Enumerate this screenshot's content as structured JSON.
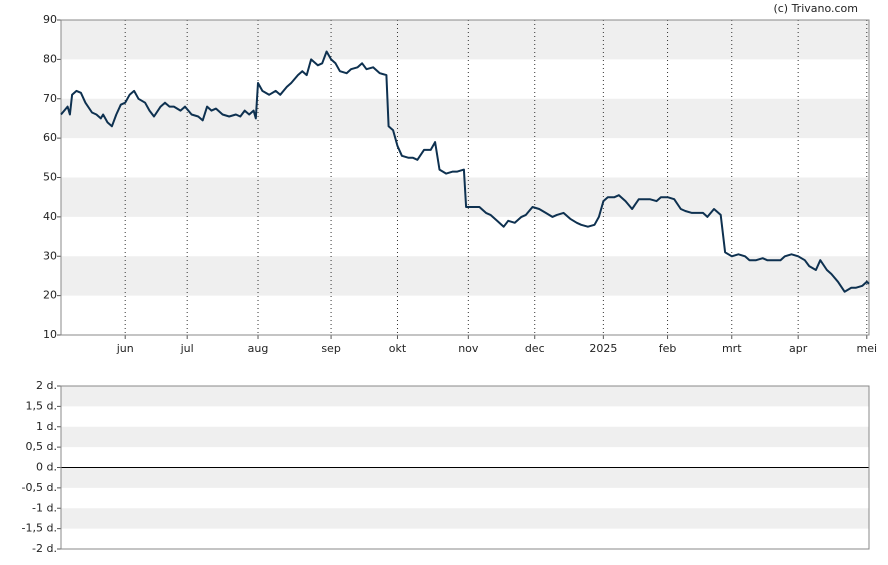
{
  "credit": "(c) Trivano.com",
  "chart_data": [
    {
      "type": "line",
      "x": [
        0,
        3,
        4,
        5,
        7,
        9,
        11,
        14,
        16,
        18,
        19,
        21,
        23,
        25,
        27,
        29,
        31,
        33,
        35,
        38,
        40,
        42,
        45,
        47,
        49,
        51,
        54,
        56,
        59,
        62,
        64,
        66,
        68,
        70,
        73,
        76,
        79,
        81,
        83,
        85,
        87,
        88,
        89,
        91,
        94,
        97,
        99,
        102,
        104,
        107,
        109,
        111,
        113,
        116,
        118,
        120,
        122,
        124,
        126,
        129,
        131,
        134,
        136,
        138,
        141,
        144,
        147,
        148,
        150,
        152,
        154,
        157,
        159,
        161,
        164,
        167,
        169,
        171,
        174,
        177,
        179,
        182,
        183,
        186,
        189,
        192,
        194,
        197,
        200,
        202,
        205,
        208,
        210,
        213,
        216,
        219,
        222,
        224,
        227,
        230,
        233,
        235,
        238,
        241,
        243,
        245,
        247,
        250,
        252,
        255,
        258,
        261,
        263,
        266,
        269,
        271,
        274,
        277,
        280,
        282,
        285,
        288,
        290,
        292,
        295,
        298,
        300,
        303,
        306,
        309,
        311,
        314,
        317,
        319,
        322,
        325,
        327,
        330,
        333,
        336,
        338,
        341,
        343,
        346,
        348,
        351,
        354,
        357,
        359,
        362,
        364,
        365
      ],
      "series": [
        {
          "color": "#0e3150",
          "values": [
            66,
            68,
            66,
            71,
            72,
            71.5,
            69,
            66.5,
            66,
            65,
            66,
            64,
            63,
            66,
            68.5,
            69,
            71,
            72,
            70,
            69,
            67,
            65.5,
            68,
            69,
            68,
            68,
            67,
            68,
            66,
            65.5,
            64.5,
            68,
            67,
            67.5,
            66,
            65.5,
            66,
            65.5,
            67,
            66,
            67,
            65,
            74,
            72,
            71,
            72,
            71,
            73,
            74,
            76,
            77,
            76,
            80,
            78.5,
            79,
            82,
            80,
            79,
            77,
            76.5,
            77.5,
            78,
            79,
            77.5,
            78,
            76.5,
            76,
            63,
            62,
            58,
            55.5,
            55,
            55,
            54.5,
            57,
            57,
            59,
            52,
            51,
            51.5,
            51.5,
            52,
            42.5,
            42.5,
            42.5,
            41,
            40.5,
            39,
            37.5,
            39,
            38.5,
            40,
            40.5,
            42.5,
            42,
            41,
            40,
            40.5,
            41,
            39.5,
            38.5,
            38,
            37.5,
            38,
            40,
            44,
            45,
            45,
            45.5,
            44,
            42,
            44.5,
            44.5,
            44.5,
            44,
            45,
            45,
            44.5,
            42,
            41.5,
            41,
            41,
            41,
            40,
            42,
            40.5,
            31,
            30,
            30.5,
            30,
            29,
            29,
            29.5,
            29,
            29,
            29,
            30,
            30.5,
            30,
            29,
            27.5,
            26.5,
            29,
            26.5,
            25.5,
            23.5,
            21,
            22,
            22,
            22.5,
            23.5,
            23
          ]
        }
      ],
      "xlim": [
        0,
        365
      ],
      "xticks": [
        {
          "value": 29,
          "label": "jun"
        },
        {
          "value": 57,
          "label": "jul"
        },
        {
          "value": 89,
          "label": "aug"
        },
        {
          "value": 122,
          "label": "sep"
        },
        {
          "value": 152,
          "label": "okt"
        },
        {
          "value": 184,
          "label": "nov"
        },
        {
          "value": 214,
          "label": "dec"
        },
        {
          "value": 245,
          "label": "2025"
        },
        {
          "value": 274,
          "label": "feb"
        },
        {
          "value": 303,
          "label": "mrt"
        },
        {
          "value": 333,
          "label": "apr"
        },
        {
          "value": 364,
          "label": "mei"
        }
      ],
      "ylim": [
        10,
        90
      ],
      "yticks": [
        10,
        20,
        30,
        40,
        50,
        60,
        70,
        80,
        90
      ],
      "bands": true,
      "xgrid": true
    },
    {
      "type": "line",
      "series": [],
      "ylim": [
        -2,
        2
      ],
      "yticks": [
        {
          "value": 2,
          "label": "2 d."
        },
        {
          "value": 1.5,
          "label": "1,5 d."
        },
        {
          "value": 1,
          "label": "1 d."
        },
        {
          "value": 0.5,
          "label": "0,5 d."
        },
        {
          "value": 0,
          "label": "0 d."
        },
        {
          "value": -0.5,
          "label": "-0,5 d."
        },
        {
          "value": -1,
          "label": "-1 d."
        },
        {
          "value": -1.5,
          "label": "-1,5 d."
        },
        {
          "value": -2,
          "label": "-2 d."
        }
      ],
      "bands": true,
      "zero_line": true
    }
  ]
}
